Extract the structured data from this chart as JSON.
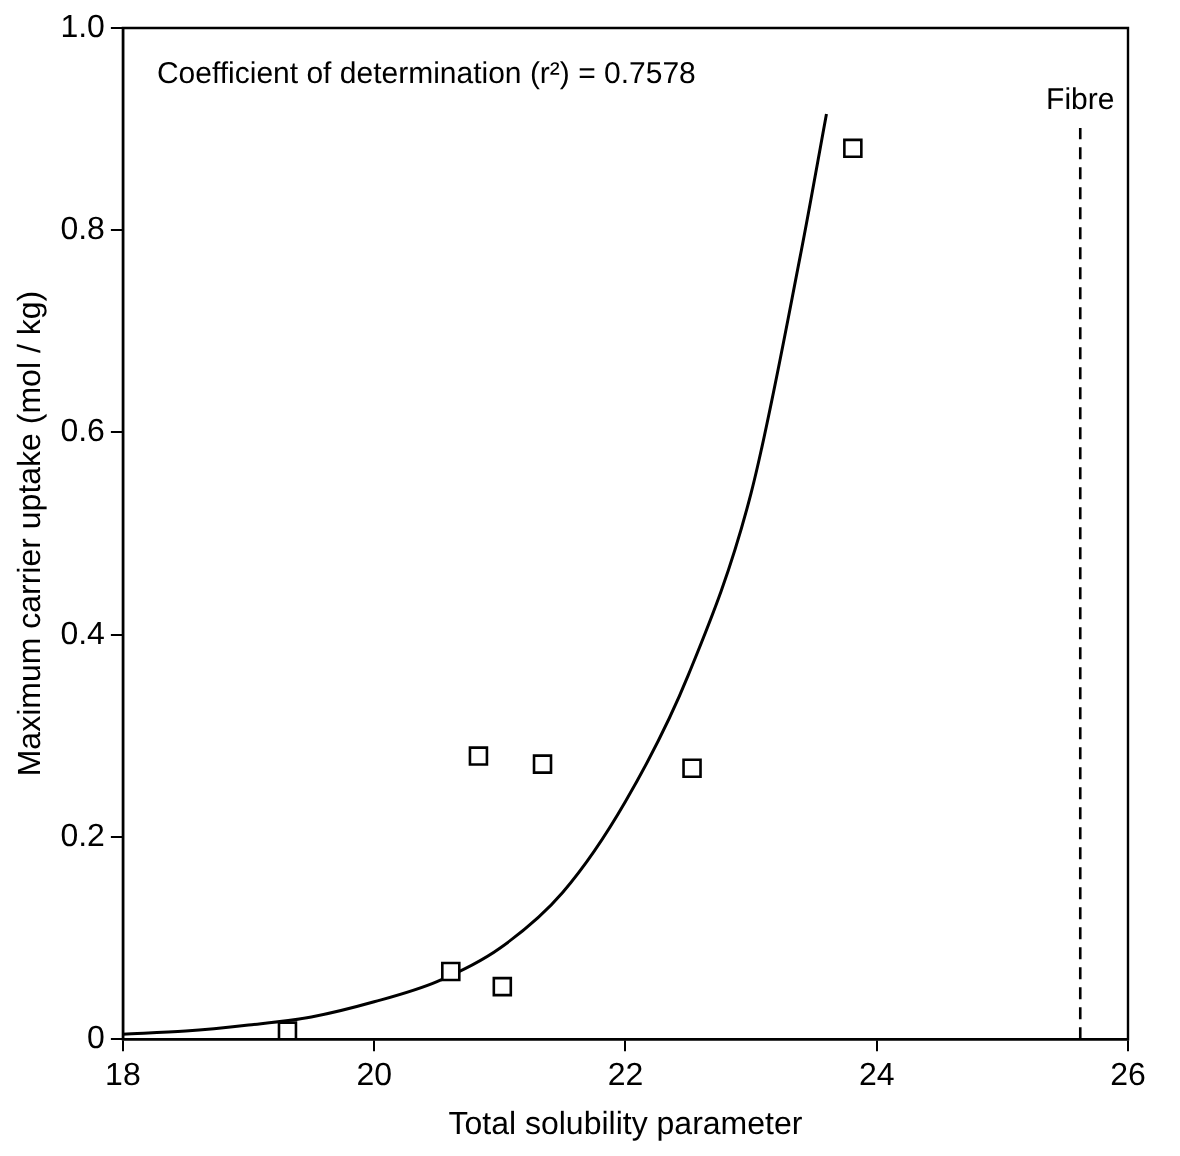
{
  "chart_data": {
    "type": "scatter",
    "xlabel": "Total solubility parameter",
    "ylabel": "Maximum carrier uptake (mol / kg)",
    "xlim": [
      18,
      26
    ],
    "xticks": [
      18,
      20,
      22,
      24,
      26
    ],
    "ylim": [
      0,
      1
    ],
    "yticks": [
      0,
      0.2,
      0.4,
      0.6,
      0.8,
      {
        "value": 1,
        "label": "1.0"
      }
    ],
    "grid": false,
    "legend": false,
    "marker": "square",
    "annotations": [
      "Coefficient of determination (r²) = 0.7578"
    ],
    "ref_lines": [
      {
        "axis": "x",
        "value": 25.62,
        "label": "Fibre",
        "color": "#000000",
        "line_style": "dashed"
      }
    ],
    "series": [
      {
        "color": "#000000",
        "x": [
          19.31,
          20.61,
          21.02,
          20.83,
          21.34,
          22.53,
          23.81
        ],
        "values": [
          0.008,
          0.067,
          0.052,
          0.28,
          0.272,
          0.268,
          0.881
        ]
      },
      {
        "type": "line",
        "color": "#000000",
        "marker": "none",
        "line_style": "solid",
        "x": [
          18,
          18.5,
          19,
          19.5,
          20,
          20.5,
          21,
          21.5,
          22,
          22.5,
          23,
          23.4,
          23.6
        ],
        "values": [
          0.005,
          0.008,
          0.014,
          0.022,
          0.037,
          0.057,
          0.09,
          0.145,
          0.235,
          0.36,
          0.54,
          0.78,
          0.915
        ]
      }
    ]
  }
}
